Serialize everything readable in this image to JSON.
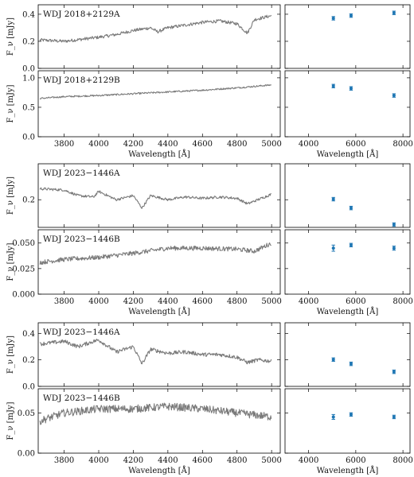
{
  "chart_data": [
    {
      "type": "line",
      "title": "WDJ 2018+2129A",
      "xlabel": "",
      "ylabel": "F_ν [mJy]",
      "xlim": [
        3650,
        5050
      ],
      "ylim": [
        0.0,
        0.47
      ],
      "yticks": [
        0.0,
        0.2,
        0.4
      ],
      "ytick_labels": [
        "0.0",
        "0.2",
        "0.4"
      ],
      "x": [
        3660,
        3800,
        4000,
        4100,
        4200,
        4300,
        4340,
        4400,
        4500,
        4600,
        4700,
        4800,
        4860,
        4900,
        5000
      ],
      "y": [
        0.21,
        0.2,
        0.23,
        0.25,
        0.28,
        0.3,
        0.27,
        0.3,
        0.32,
        0.34,
        0.35,
        0.33,
        0.26,
        0.36,
        0.39
      ]
    },
    {
      "type": "scatter",
      "title": "",
      "xlim": [
        3000,
        8300
      ],
      "ylim": [
        0.0,
        0.47
      ],
      "x": [
        5050,
        5800,
        7620
      ],
      "y": [
        0.37,
        0.39,
        0.41
      ],
      "yerr": [
        0.006,
        0.006,
        0.006
      ]
    },
    {
      "type": "line",
      "title": "WDJ 2018+2129B",
      "xlabel": "Wavelength [Å]",
      "ylabel": "F_ν [mJy]",
      "xlim": [
        3650,
        5050
      ],
      "ylim": [
        0.0,
        1.12
      ],
      "yticks": [
        0.0,
        0.5,
        1.0
      ],
      "ytick_labels": [
        "0.0",
        "0.5",
        "1.0"
      ],
      "xticks": [
        3800,
        4000,
        4200,
        4400,
        4600,
        4800,
        5000
      ],
      "xtick_labels": [
        "3800",
        "4000",
        "4200",
        "4400",
        "4600",
        "4800",
        "5000"
      ],
      "x": [
        3660,
        3800,
        4000,
        4200,
        4400,
        4600,
        4800,
        5000
      ],
      "y": [
        0.65,
        0.68,
        0.7,
        0.73,
        0.76,
        0.79,
        0.83,
        0.88
      ]
    },
    {
      "type": "scatter",
      "title": "",
      "xlabel": "Wavelength [Å]",
      "xlim": [
        3000,
        8300
      ],
      "ylim": [
        0.0,
        1.12
      ],
      "xticks": [
        4000,
        6000,
        8000
      ],
      "xtick_labels": [
        "4000",
        "6000",
        "8000"
      ],
      "x": [
        5050,
        5800,
        7620
      ],
      "y": [
        0.86,
        0.82,
        0.7
      ],
      "yerr": [
        0.012,
        0.012,
        0.012
      ]
    },
    {
      "type": "line",
      "title": "WDJ 2023−1446A",
      "xlabel": "",
      "ylabel": "F_ν [mJy]",
      "xlim": [
        3650,
        5050
      ],
      "ylim": [
        0.1,
        0.33
      ],
      "yticks": [
        0.2
      ],
      "ytick_labels": [
        "0.2"
      ],
      "x": [
        3660,
        3800,
        3880,
        3970,
        4000,
        4101,
        4200,
        4250,
        4300,
        4400,
        4500,
        4600,
        4700,
        4800,
        4861,
        4920,
        5000
      ],
      "y": [
        0.24,
        0.235,
        0.215,
        0.21,
        0.23,
        0.2,
        0.215,
        0.17,
        0.215,
        0.2,
        0.21,
        0.205,
        0.21,
        0.205,
        0.185,
        0.2,
        0.22
      ]
    },
    {
      "type": "scatter",
      "title": "",
      "xlim": [
        3000,
        8300
      ],
      "ylim": [
        0.1,
        0.33
      ],
      "x": [
        5050,
        5800,
        7620
      ],
      "y": [
        0.202,
        0.17,
        0.11
      ],
      "yerr": [
        0.003,
        0.003,
        0.003
      ]
    },
    {
      "type": "line",
      "title": "WDJ 2023−1446B",
      "xlabel": "Wavelength [Å]",
      "ylabel": "F_ν [mJy]",
      "xlim": [
        3650,
        5050
      ],
      "ylim": [
        0.0,
        0.063
      ],
      "yticks": [
        0.0,
        0.025,
        0.05
      ],
      "ytick_labels": [
        "0.000",
        "0.025",
        "0.050"
      ],
      "xticks": [
        3800,
        4000,
        4200,
        4400,
        4600,
        4800,
        5000
      ],
      "xtick_labels": [
        "3800",
        "4000",
        "4200",
        "4400",
        "4600",
        "4800",
        "5000"
      ],
      "x": [
        3660,
        3800,
        4000,
        4200,
        4400,
        4600,
        4800,
        4900,
        5000
      ],
      "y": [
        0.031,
        0.034,
        0.036,
        0.04,
        0.045,
        0.045,
        0.044,
        0.042,
        0.05
      ]
    },
    {
      "type": "scatter",
      "title": "",
      "xlabel": "Wavelength [Å]",
      "xlim": [
        3000,
        8300
      ],
      "ylim": [
        0.0,
        0.063
      ],
      "xticks": [
        4000,
        6000,
        8000
      ],
      "xtick_labels": [
        "4000",
        "6000",
        "8000"
      ],
      "x": [
        5050,
        5800,
        7620
      ],
      "y": [
        0.045,
        0.048,
        0.045
      ],
      "yerr": [
        0.003,
        0.0015,
        0.002
      ]
    },
    {
      "type": "line",
      "title": "WDJ 2023−1446A",
      "xlabel": "",
      "ylabel": "F_ν [mJy]",
      "xlim": [
        3650,
        5050
      ],
      "ylim": [
        0.0,
        0.48
      ],
      "yticks": [
        0.0,
        0.2,
        0.4
      ],
      "ytick_labels": [
        "0.0",
        "0.2",
        "0.4"
      ],
      "x": [
        3660,
        3800,
        3880,
        3970,
        4000,
        4101,
        4200,
        4250,
        4300,
        4400,
        4500,
        4600,
        4700,
        4800,
        4861,
        4920,
        5000
      ],
      "y": [
        0.32,
        0.34,
        0.3,
        0.34,
        0.35,
        0.26,
        0.3,
        0.17,
        0.28,
        0.25,
        0.26,
        0.24,
        0.24,
        0.22,
        0.18,
        0.2,
        0.19
      ]
    },
    {
      "type": "scatter",
      "title": "",
      "xlim": [
        3000,
        8300
      ],
      "ylim": [
        0.0,
        0.48
      ],
      "x": [
        5050,
        5800,
        7620
      ],
      "y": [
        0.202,
        0.17,
        0.11
      ],
      "yerr": [
        0.005,
        0.005,
        0.005
      ]
    },
    {
      "type": "line",
      "title": "WDJ 2023−1446B",
      "xlabel": "Wavelength [Å]",
      "ylabel": "F_ν [mJy]",
      "xlim": [
        3650,
        5050
      ],
      "ylim": [
        0.0,
        0.08
      ],
      "yticks": [
        0.0,
        0.05
      ],
      "ytick_labels": [
        "0.00",
        "0.05"
      ],
      "xticks": [
        3800,
        4000,
        4200,
        4400,
        4600,
        4800,
        5000
      ],
      "xtick_labels": [
        "3800",
        "4000",
        "4200",
        "4400",
        "4600",
        "4800",
        "5000"
      ],
      "x": [
        3660,
        3800,
        4000,
        4200,
        4400,
        4600,
        4800,
        5000
      ],
      "y": [
        0.04,
        0.05,
        0.055,
        0.055,
        0.058,
        0.055,
        0.05,
        0.045
      ]
    },
    {
      "type": "scatter",
      "title": "",
      "xlabel": "Wavelength [Å]",
      "xlim": [
        3000,
        8300
      ],
      "ylim": [
        0.0,
        0.08
      ],
      "xticks": [
        4000,
        6000,
        8000
      ],
      "xtick_labels": [
        "4000",
        "6000",
        "8000"
      ],
      "x": [
        5050,
        5800,
        7620
      ],
      "y": [
        0.045,
        0.048,
        0.045
      ],
      "yerr": [
        0.003,
        0.0015,
        0.002
      ]
    }
  ],
  "colors": {
    "spectrum": "#7a7a7a",
    "photometry": "#1f77b4",
    "frame": "#000000"
  }
}
